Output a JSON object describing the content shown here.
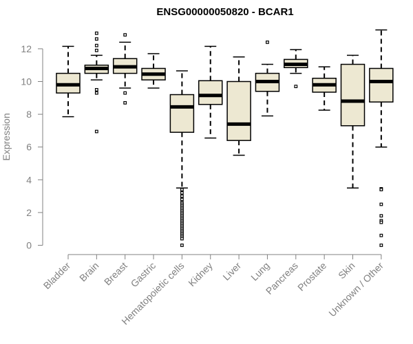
{
  "chart_data": {
    "type": "boxplot",
    "title": "ENSG00000050820 - BCAR1",
    "xlabel": "",
    "ylabel": "Expression",
    "ylim": [
      0,
      13.2
    ],
    "yticks": [
      0,
      2,
      4,
      6,
      8,
      10,
      12
    ],
    "box_fill": "#ede8d2",
    "line_color": "#000000",
    "axis_color": "#808080",
    "categories": [
      "Bladder",
      "Brain",
      "Breast",
      "Gastric",
      "Hematopoietic cells",
      "Kidney",
      "Liver",
      "Lung",
      "Pancreas",
      "Prostate",
      "Skin",
      "Unknown / Other"
    ],
    "series": [
      {
        "name": "Bladder",
        "whisker_low": 7.85,
        "q1": 9.3,
        "median": 9.8,
        "q3": 10.5,
        "whisker_high": 12.15,
        "outliers": []
      },
      {
        "name": "Brain",
        "whisker_low": 10.1,
        "q1": 10.5,
        "median": 10.8,
        "q3": 11.0,
        "whisker_high": 11.6,
        "outliers": [
          12.95,
          12.6,
          12.2,
          11.9,
          9.5,
          9.3,
          6.95
        ]
      },
      {
        "name": "Breast",
        "whisker_low": 9.6,
        "q1": 10.5,
        "median": 10.9,
        "q3": 11.4,
        "whisker_high": 12.4,
        "outliers": [
          12.85,
          9.3,
          8.7
        ]
      },
      {
        "name": "Gastric",
        "whisker_low": 9.6,
        "q1": 10.1,
        "median": 10.45,
        "q3": 10.8,
        "whisker_high": 11.7,
        "outliers": []
      },
      {
        "name": "Hematopoietic cells",
        "whisker_low": 3.5,
        "q1": 6.9,
        "median": 8.45,
        "q3": 9.2,
        "whisker_high": 10.65,
        "outliers": [
          3.4,
          3.2,
          3.0,
          2.8,
          2.6,
          2.5,
          2.4,
          2.3,
          2.2,
          2.1,
          2.0,
          1.9,
          1.8,
          1.7,
          1.6,
          1.5,
          1.4,
          1.3,
          1.2,
          1.1,
          1.0,
          0.9,
          0.8,
          0.7,
          0.6,
          0.5,
          0.4,
          0.0
        ]
      },
      {
        "name": "Kidney",
        "whisker_low": 6.55,
        "q1": 8.6,
        "median": 9.15,
        "q3": 10.05,
        "whisker_high": 12.15,
        "outliers": []
      },
      {
        "name": "Liver",
        "whisker_low": 5.5,
        "q1": 6.4,
        "median": 7.4,
        "q3": 10.0,
        "whisker_high": 11.5,
        "outliers": []
      },
      {
        "name": "Lung",
        "whisker_low": 7.9,
        "q1": 9.4,
        "median": 10.0,
        "q3": 10.5,
        "whisker_high": 11.05,
        "outliers": [
          12.4
        ]
      },
      {
        "name": "Pancreas",
        "whisker_low": 10.5,
        "q1": 10.85,
        "median": 11.05,
        "q3": 11.35,
        "whisker_high": 11.95,
        "outliers": [
          9.7
        ]
      },
      {
        "name": "Prostate",
        "whisker_low": 8.25,
        "q1": 9.35,
        "median": 9.8,
        "q3": 10.2,
        "whisker_high": 10.9,
        "outliers": []
      },
      {
        "name": "Skin",
        "whisker_low": 3.5,
        "q1": 7.3,
        "median": 8.8,
        "q3": 11.05,
        "whisker_high": 11.6,
        "outliers": []
      },
      {
        "name": "Unknown / Other",
        "whisker_low": 6.0,
        "q1": 8.75,
        "median": 10.0,
        "q3": 10.8,
        "whisker_high": 13.15,
        "outliers": [
          3.45,
          3.4,
          2.5,
          1.8,
          1.5,
          1.4,
          0.6,
          0.0
        ]
      }
    ]
  }
}
